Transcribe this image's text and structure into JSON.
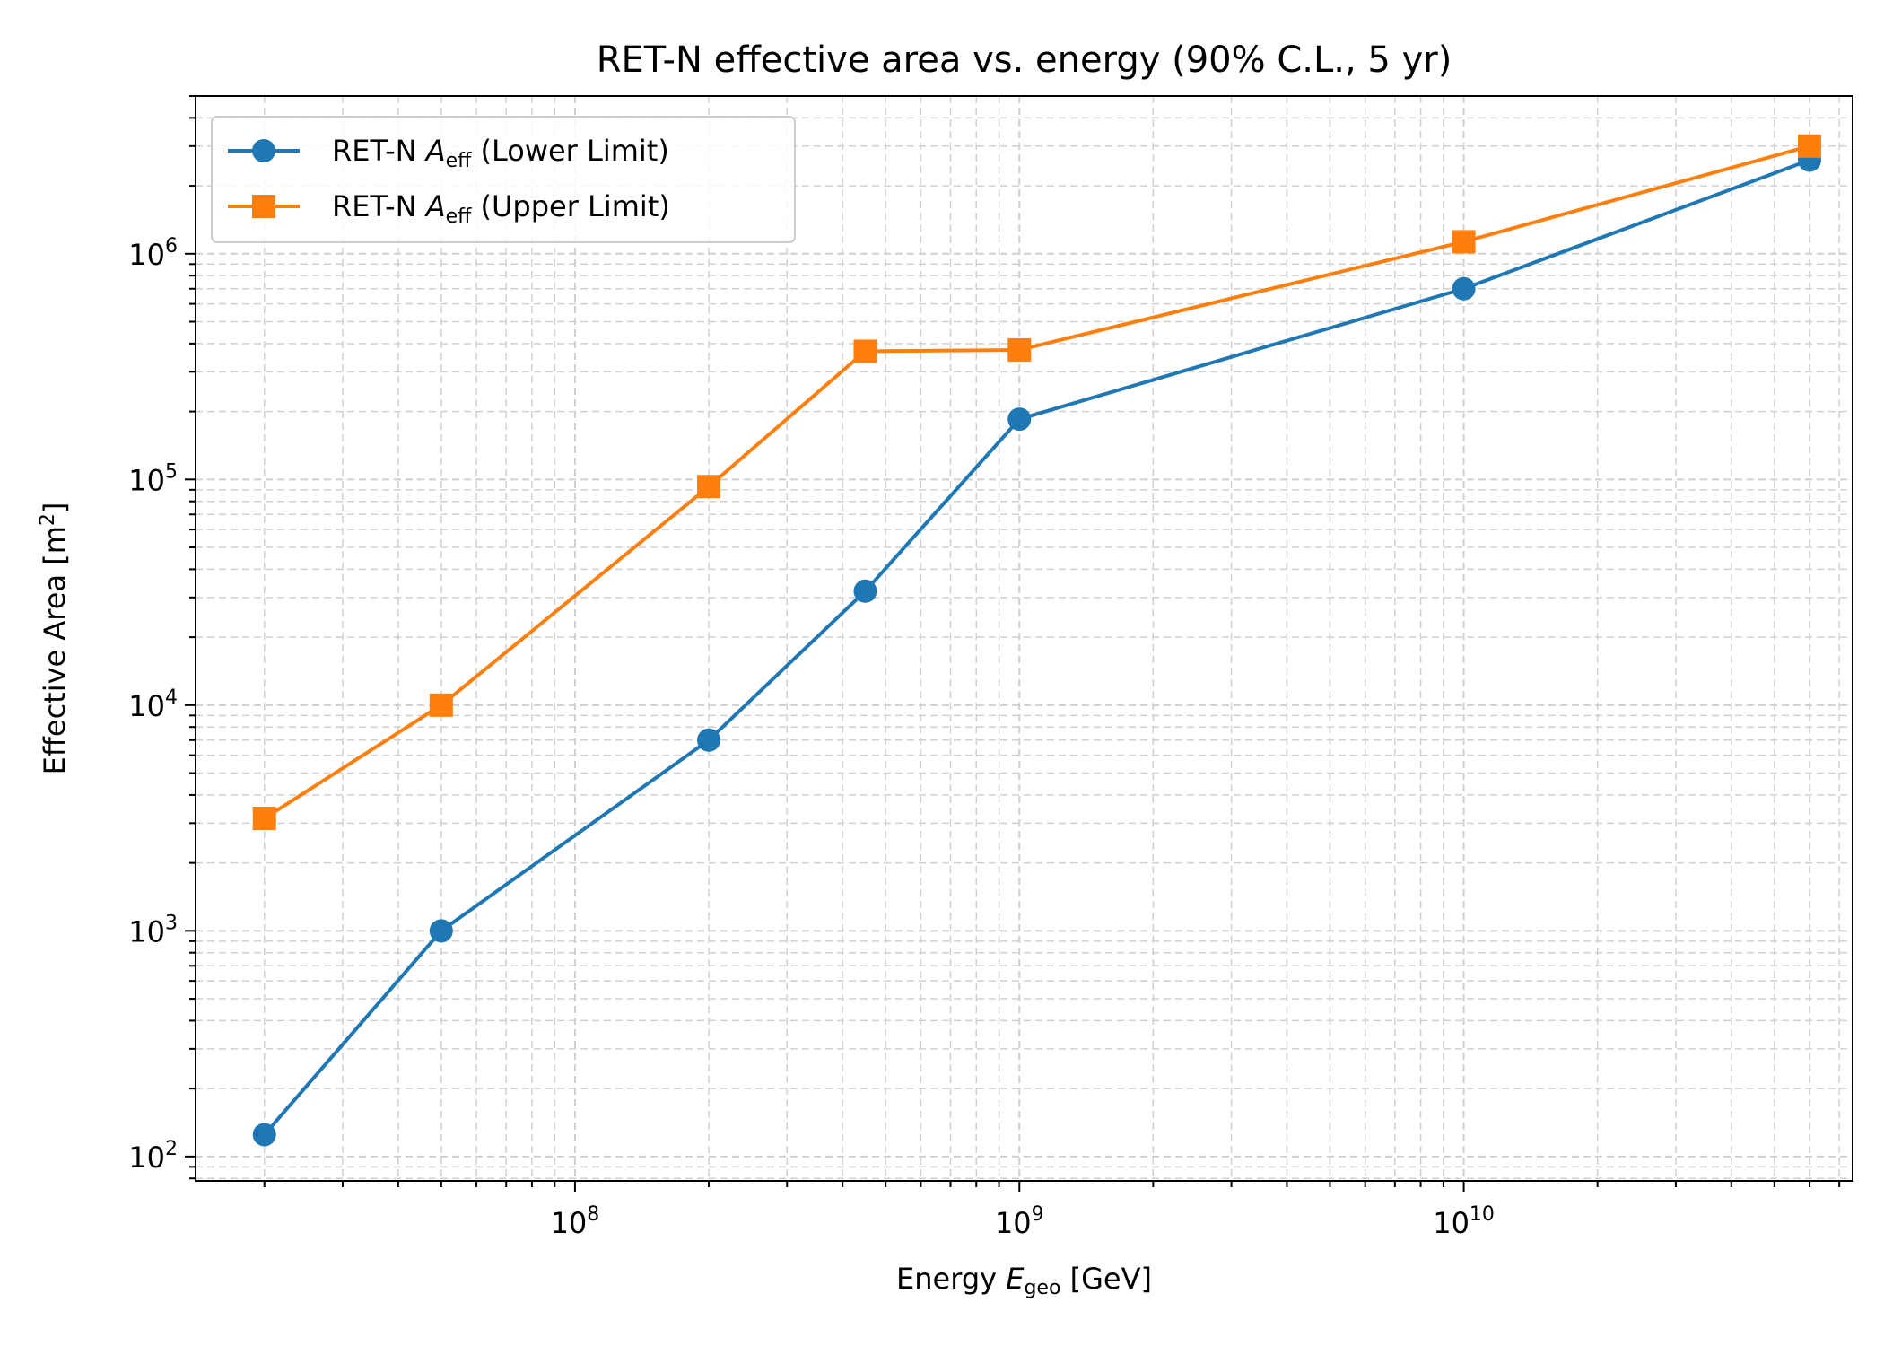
{
  "chart_data": {
    "type": "line",
    "title": "RET-N effective area vs. energy (90% C.L., 5 yr)",
    "xlabel": {
      "prefix": "Energy ",
      "symbol": "E",
      "sub": "geo",
      "suffix": " [GeV]"
    },
    "ylabel": {
      "text": "Effective Area [m",
      "sup": "2",
      "suffix": "]"
    },
    "xscale": "log",
    "yscale": "log",
    "xlim": [
      14000000,
      75000000000
    ],
    "ylim": [
      78,
      5000000
    ],
    "x_ticks": [
      {
        "base": "10",
        "exp": "8",
        "value": 100000000
      },
      {
        "base": "10",
        "exp": "9",
        "value": 1000000000
      },
      {
        "base": "10",
        "exp": "10",
        "value": 10000000000
      }
    ],
    "y_ticks": [
      {
        "base": "10",
        "exp": "2",
        "value": 100
      },
      {
        "base": "10",
        "exp": "3",
        "value": 1000
      },
      {
        "base": "10",
        "exp": "4",
        "value": 10000
      },
      {
        "base": "10",
        "exp": "5",
        "value": 100000
      },
      {
        "base": "10",
        "exp": "6",
        "value": 1000000
      }
    ],
    "grid": true,
    "legend_position": "top-left",
    "series": [
      {
        "name": {
          "prefix": "RET-N ",
          "symbol": "A",
          "sub": "eff",
          "suffix": " (Lower Limit)"
        },
        "color": "#1f77b4",
        "marker": "circle",
        "x": [
          20000000,
          50000000,
          200000000,
          450000000,
          1000000000,
          10000000000,
          60000000000
        ],
        "y": [
          125,
          1000,
          7000,
          32000,
          185000,
          700000,
          2600000
        ]
      },
      {
        "name": {
          "prefix": "RET-N ",
          "symbol": "A",
          "sub": "eff",
          "suffix": " (Upper Limit)"
        },
        "color": "#ff7f0e",
        "marker": "square",
        "x": [
          20000000,
          50000000,
          200000000,
          450000000,
          1000000000,
          10000000000,
          60000000000
        ],
        "y": [
          3150,
          10000,
          93000,
          370000,
          375000,
          1130000,
          3000000
        ]
      }
    ]
  }
}
